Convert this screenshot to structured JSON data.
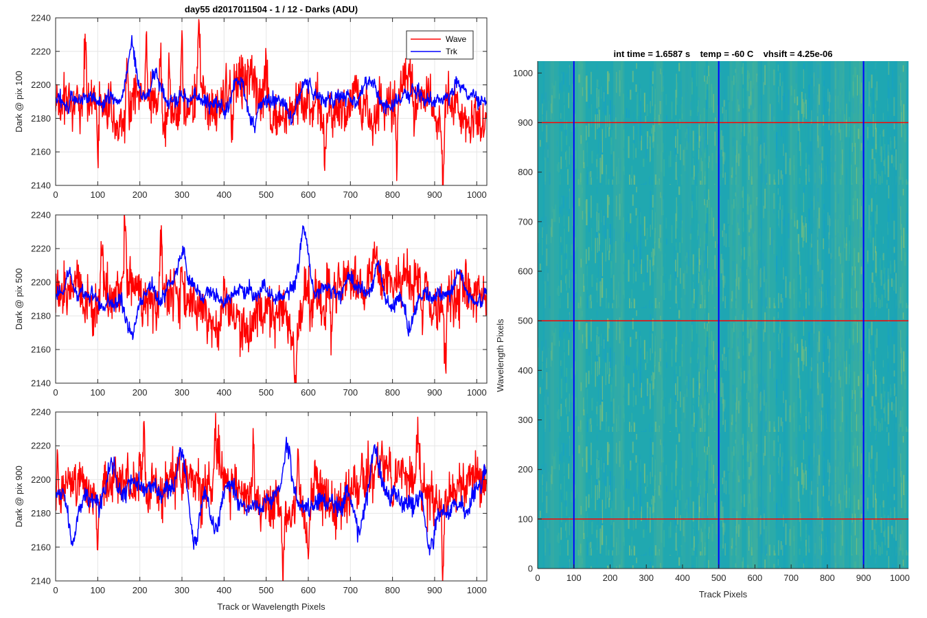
{
  "chart_data": [
    {
      "type": "line",
      "title": "day55 d2017011504 - 1 / 12 - Darks (ADU)",
      "xlabel": "",
      "ylabel": "Dark @ pix 100",
      "xlim": [
        0,
        1024
      ],
      "ylim": [
        2140,
        2240
      ],
      "xticks": [
        "0",
        "100",
        "200",
        "300",
        "400",
        "500",
        "600",
        "700",
        "800",
        "900",
        "1000"
      ],
      "yticks": [
        "2140",
        "2160",
        "2180",
        "2200",
        "2220",
        "2240"
      ],
      "grid": true,
      "legend": {
        "position": "top-right",
        "entries": [
          "Wave",
          "Trk"
        ]
      },
      "series": [
        {
          "name": "Wave",
          "color": "#ff0000",
          "mean": 2190,
          "noise": 8,
          "n": 1024,
          "peaks": [
            [
              70,
              2222
            ],
            [
              100,
              2155
            ],
            [
              170,
              2224
            ],
            [
              215,
              2225
            ],
            [
              248,
              2228
            ],
            [
              270,
              2228
            ],
            [
              300,
              2232
            ],
            [
              340,
              2228
            ],
            [
              420,
              2165
            ],
            [
              500,
              2210
            ],
            [
              580,
              2205
            ],
            [
              640,
              2158
            ],
            [
              810,
              2155
            ],
            [
              850,
              2170
            ],
            [
              920,
              2148
            ]
          ]
        },
        {
          "name": "Trk",
          "color": "#0000ff",
          "mean": 2192,
          "noise": 4,
          "n": 1024,
          "peaks": [
            [
              180,
              2220
            ],
            [
              240,
              2210
            ],
            [
              430,
              2207
            ],
            [
              470,
              2172
            ],
            [
              560,
              2178
            ],
            [
              750,
              2205
            ],
            [
              850,
              2198
            ],
            [
              960,
              2203
            ]
          ]
        }
      ]
    },
    {
      "type": "line",
      "title": "",
      "xlabel": "",
      "ylabel": "Dark @ pix 500",
      "xlim": [
        0,
        1024
      ],
      "ylim": [
        2140,
        2240
      ],
      "xticks": [
        "0",
        "100",
        "200",
        "300",
        "400",
        "500",
        "600",
        "700",
        "800",
        "900",
        "1000"
      ],
      "yticks": [
        "2140",
        "2160",
        "2180",
        "2200",
        "2220",
        "2240"
      ],
      "grid": true,
      "series": [
        {
          "name": "Wave",
          "color": "#ff0000",
          "mean": 2190,
          "noise": 8,
          "n": 1024,
          "peaks": [
            [
              110,
              2220
            ],
            [
              165,
              2219
            ],
            [
              250,
              2226
            ],
            [
              300,
              2205
            ],
            [
              400,
              2225
            ],
            [
              570,
              2154
            ],
            [
              605,
              2180
            ],
            [
              655,
              2152
            ],
            [
              870,
              2158
            ],
            [
              925,
              2152
            ]
          ]
        },
        {
          "name": "Trk",
          "color": "#0000ff",
          "mean": 2193,
          "noise": 4,
          "n": 1024,
          "peaks": [
            [
              30,
              2210
            ],
            [
              180,
              2168
            ],
            [
              300,
              2215
            ],
            [
              590,
              2229
            ],
            [
              700,
              2205
            ],
            [
              765,
              2216
            ],
            [
              840,
              2170
            ],
            [
              960,
              2212
            ]
          ]
        }
      ]
    },
    {
      "type": "line",
      "title": "",
      "xlabel": "Track or Wavelength Pixels",
      "ylabel": "Dark @ pix 900",
      "xlim": [
        0,
        1024
      ],
      "ylim": [
        2140,
        2240
      ],
      "xticks": [
        "0",
        "100",
        "200",
        "300",
        "400",
        "500",
        "600",
        "700",
        "800",
        "900",
        "1000"
      ],
      "yticks": [
        "2140",
        "2160",
        "2180",
        "2200",
        "2220",
        "2240"
      ],
      "grid": true,
      "series": [
        {
          "name": "Wave",
          "color": "#ff0000",
          "mean": 2191,
          "noise": 8,
          "n": 1024,
          "peaks": [
            [
              100,
              2158
            ],
            [
              210,
              2228
            ],
            [
              380,
              2215
            ],
            [
              470,
              2220
            ],
            [
              540,
              2152
            ],
            [
              575,
              2231
            ],
            [
              600,
              2160
            ],
            [
              800,
              2162
            ],
            [
              860,
              2215
            ],
            [
              920,
              2144
            ]
          ]
        },
        {
          "name": "Trk",
          "color": "#0000ff",
          "mean": 2188,
          "noise": 5,
          "n": 1024,
          "peaks": [
            [
              40,
              2163
            ],
            [
              130,
              2208
            ],
            [
              300,
              2208
            ],
            [
              330,
              2160
            ],
            [
              380,
              2162
            ],
            [
              550,
              2214
            ],
            [
              720,
              2162
            ],
            [
              760,
              2215
            ],
            [
              890,
              2155
            ],
            [
              1020,
              2205
            ]
          ]
        }
      ]
    },
    {
      "type": "heatmap",
      "title": "int time = 1.6587 s    temp = -60 C    vhsift = 4.25e-06",
      "xlabel": "Track Pixels",
      "ylabel": "Wavelength Pixels",
      "xlim": [
        0,
        1024
      ],
      "ylim": [
        0,
        1024
      ],
      "xticks": [
        "0",
        "100",
        "200",
        "300",
        "400",
        "500",
        "600",
        "700",
        "800",
        "900",
        "1000"
      ],
      "yticks": [
        "0",
        "100",
        "200",
        "300",
        "400",
        "500",
        "600",
        "700",
        "800",
        "900",
        "1000"
      ],
      "colors": [
        "#15a0c6",
        "#20a8b0",
        "#3db39a",
        "#7ec07a"
      ],
      "markers": {
        "vertical": {
          "values": [
            100,
            500,
            900
          ],
          "color": "#0000ff"
        },
        "horizontal": {
          "values": [
            100,
            500,
            900
          ],
          "color": "#ff0000"
        }
      }
    }
  ]
}
